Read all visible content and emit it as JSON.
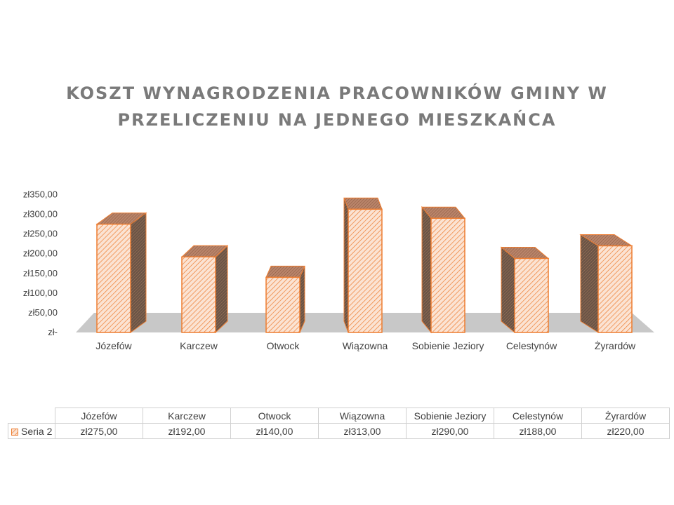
{
  "chart_data": {
    "type": "bar",
    "title": "Koszt wynagrodzenia pracowników gminy w przeliczeniu na jednego mieszkańca",
    "categories": [
      "Józefów",
      "Karczew",
      "Otwock",
      "Wiązowna",
      "Sobienie Jeziory",
      "Celestynów",
      "Żyrardów"
    ],
    "series": [
      {
        "name": "Seria 2",
        "values": [
          275,
          192,
          140,
          313,
          290,
          188,
          220
        ]
      }
    ],
    "value_labels": [
      "zł275,00",
      "zł192,00",
      "zł140,00",
      "zł313,00",
      "zł290,00",
      "zł188,00",
      "zł220,00"
    ],
    "ylim": [
      0,
      350
    ],
    "yticks": [
      0,
      50,
      100,
      150,
      200,
      250,
      300,
      350
    ],
    "ytick_labels": [
      "zł-",
      "zł50,00",
      "zł100,00",
      "zł150,00",
      "zł200,00",
      "zł250,00",
      "zł300,00",
      "zł350,00"
    ],
    "xlabel": "",
    "ylabel": "",
    "style": "3d-column",
    "grid": false,
    "data_table": true
  },
  "colors": {
    "bar_front": "#fbe3d3",
    "bar_hatch": "#ed7d31",
    "bar_edge": "#ed7d31",
    "bar_side_dark": "#6a5446",
    "bar_top": "#b9846a",
    "floor": "#c8c8c8",
    "title": "#7a7a7a",
    "text": "#404040"
  }
}
